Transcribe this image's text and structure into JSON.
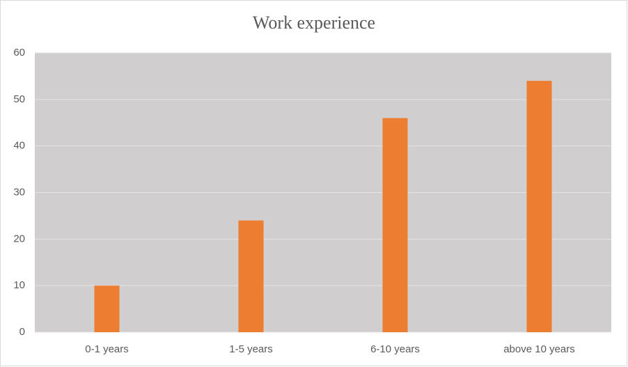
{
  "chart_data": {
    "type": "bar",
    "title": "Work experience",
    "categories": [
      "0-1 years",
      "1-5 years",
      "6-10 years",
      "above 10 years"
    ],
    "values": [
      10,
      24,
      46,
      54
    ],
    "color": "#ed7d31",
    "ylim": [
      0,
      60
    ],
    "yticks": [
      0,
      10,
      20,
      30,
      40,
      50,
      60
    ],
    "grid": true
  }
}
